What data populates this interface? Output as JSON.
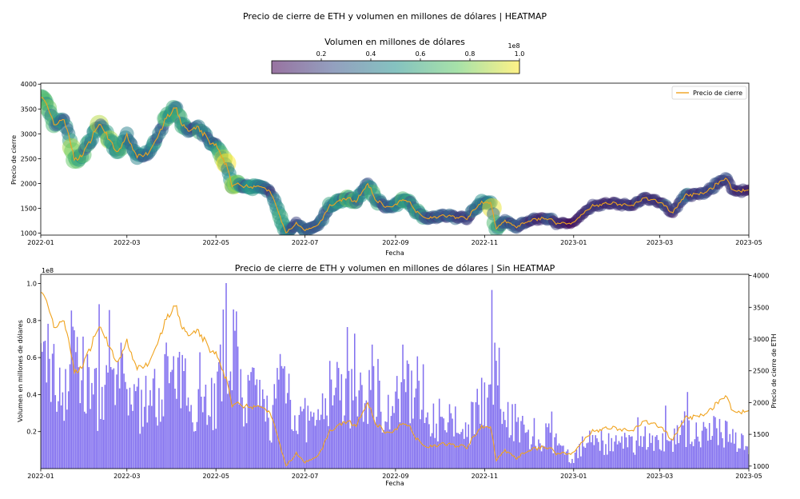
{
  "chart_data": [
    {
      "type": "scatter",
      "title": "Precio de cierre de ETH y volumen en millones de dólares | HEATMAP",
      "xlabel": "Fecha",
      "ylabel": "Precio de cierre",
      "x_ticks": [
        "2022-01",
        "2022-03",
        "2022-05",
        "2022-07",
        "2022-09",
        "2022-11",
        "2023-01",
        "2023-03",
        "2023-05"
      ],
      "y_ticks": [
        "1000",
        "1500",
        "2000",
        "2500",
        "3000",
        "3500",
        "4000"
      ],
      "xlim": [
        "2022-01-01",
        "2023-05-01"
      ],
      "ylim": [
        960,
        4020
      ],
      "legend": {
        "label": "Precio de cierre",
        "position": "upper right"
      },
      "colorbar": {
        "label": "Volumen en millones de dólares",
        "ticks": [
          "0.2",
          "0.4",
          "0.6",
          "0.8",
          "1.0"
        ],
        "offset": "1e8",
        "range": [
          0.0,
          1.0
        ],
        "colormap": "viridis"
      },
      "line_color": "#f0a31e",
      "keypoints": [
        {
          "date": "2022-01-01",
          "price": 3800,
          "vol": 0.55
        },
        {
          "date": "2022-01-06",
          "price": 3520,
          "vol": 0.75
        },
        {
          "date": "2022-01-10",
          "price": 3150,
          "vol": 0.55
        },
        {
          "date": "2022-01-15",
          "price": 3320,
          "vol": 0.5
        },
        {
          "date": "2022-01-20",
          "price": 3050,
          "vol": 0.55
        },
        {
          "date": "2022-01-24",
          "price": 2450,
          "vol": 0.85
        },
        {
          "date": "2022-01-30",
          "price": 2600,
          "vol": 0.55
        },
        {
          "date": "2022-02-07",
          "price": 3050,
          "vol": 0.45
        },
        {
          "date": "2022-02-10",
          "price": 3200,
          "vol": 0.45
        },
        {
          "date": "2022-02-15",
          "price": 3000,
          "vol": 0.4
        },
        {
          "date": "2022-02-22",
          "price": 2600,
          "vol": 0.55
        },
        {
          "date": "2022-03-01",
          "price": 2950,
          "vol": 0.5
        },
        {
          "date": "2022-03-08",
          "price": 2550,
          "vol": 0.4
        },
        {
          "date": "2022-03-15",
          "price": 2600,
          "vol": 0.4
        },
        {
          "date": "2022-03-22",
          "price": 2950,
          "vol": 0.45
        },
        {
          "date": "2022-03-29",
          "price": 3350,
          "vol": 0.6
        },
        {
          "date": "2022-04-03",
          "price": 3500,
          "vol": 0.5
        },
        {
          "date": "2022-04-11",
          "price": 3050,
          "vol": 0.5
        },
        {
          "date": "2022-04-20",
          "price": 3100,
          "vol": 0.4
        },
        {
          "date": "2022-04-26",
          "price": 2850,
          "vol": 0.45
        },
        {
          "date": "2022-05-01",
          "price": 2750,
          "vol": 0.4
        },
        {
          "date": "2022-05-09",
          "price": 2300,
          "vol": 0.85
        },
        {
          "date": "2022-05-12",
          "price": 1980,
          "vol": 0.8
        },
        {
          "date": "2022-05-20",
          "price": 1950,
          "vol": 0.45
        },
        {
          "date": "2022-05-31",
          "price": 1950,
          "vol": 0.4
        },
        {
          "date": "2022-06-08",
          "price": 1800,
          "vol": 0.3
        },
        {
          "date": "2022-06-13",
          "price": 1400,
          "vol": 0.55
        },
        {
          "date": "2022-06-18",
          "price": 1000,
          "vol": 0.6
        },
        {
          "date": "2022-06-25",
          "price": 1200,
          "vol": 0.3
        },
        {
          "date": "2022-07-01",
          "price": 1050,
          "vol": 0.3
        },
        {
          "date": "2022-07-10",
          "price": 1150,
          "vol": 0.25
        },
        {
          "date": "2022-07-18",
          "price": 1550,
          "vol": 0.5
        },
        {
          "date": "2022-07-28",
          "price": 1700,
          "vol": 0.45
        },
        {
          "date": "2022-08-05",
          "price": 1650,
          "vol": 0.4
        },
        {
          "date": "2022-08-13",
          "price": 1980,
          "vol": 0.45
        },
        {
          "date": "2022-08-19",
          "price": 1650,
          "vol": 0.5
        },
        {
          "date": "2022-08-28",
          "price": 1500,
          "vol": 0.35
        },
        {
          "date": "2022-09-08",
          "price": 1700,
          "vol": 0.45
        },
        {
          "date": "2022-09-15",
          "price": 1450,
          "vol": 0.55
        },
        {
          "date": "2022-09-22",
          "price": 1300,
          "vol": 0.4
        },
        {
          "date": "2022-10-05",
          "price": 1350,
          "vol": 0.25
        },
        {
          "date": "2022-10-20",
          "price": 1300,
          "vol": 0.2
        },
        {
          "date": "2022-10-29",
          "price": 1600,
          "vol": 0.5
        },
        {
          "date": "2022-11-05",
          "price": 1620,
          "vol": 0.45
        },
        {
          "date": "2022-11-09",
          "price": 1100,
          "vol": 0.6
        },
        {
          "date": "2022-11-15",
          "price": 1250,
          "vol": 0.35
        },
        {
          "date": "2022-11-22",
          "price": 1120,
          "vol": 0.3
        },
        {
          "date": "2022-12-05",
          "price": 1280,
          "vol": 0.15
        },
        {
          "date": "2022-12-15",
          "price": 1300,
          "vol": 0.2
        },
        {
          "date": "2022-12-20",
          "price": 1200,
          "vol": 0.15
        },
        {
          "date": "2022-12-31",
          "price": 1200,
          "vol": 0.05
        },
        {
          "date": "2023-01-14",
          "price": 1550,
          "vol": 0.2
        },
        {
          "date": "2023-01-25",
          "price": 1600,
          "vol": 0.15
        },
        {
          "date": "2023-02-10",
          "price": 1550,
          "vol": 0.15
        },
        {
          "date": "2023-02-18",
          "price": 1700,
          "vol": 0.2
        },
        {
          "date": "2023-03-01",
          "price": 1620,
          "vol": 0.15
        },
        {
          "date": "2023-03-10",
          "price": 1420,
          "vol": 0.2
        },
        {
          "date": "2023-03-18",
          "price": 1750,
          "vol": 0.25
        },
        {
          "date": "2023-04-01",
          "price": 1820,
          "vol": 0.2
        },
        {
          "date": "2023-04-15",
          "price": 2100,
          "vol": 0.25
        },
        {
          "date": "2023-04-21",
          "price": 1850,
          "vol": 0.2
        },
        {
          "date": "2023-04-30",
          "price": 1870,
          "vol": 0.15
        }
      ]
    },
    {
      "type": "bar",
      "title": "Precio de cierre de ETH y volumen en millones de dólares | Sin HEATMAP",
      "xlabel": "Fecha",
      "ylabel": "Volumen en millones de dólares",
      "y2label": "Precio de cierre de ETH",
      "x_ticks": [
        "2022-01",
        "2022-03",
        "2022-05",
        "2022-07",
        "2022-09",
        "2022-11",
        "2023-01",
        "2023-03",
        "2023-05"
      ],
      "y_ticks": [
        "0.2",
        "0.4",
        "0.6",
        "0.8",
        "1.0"
      ],
      "y_offset": "1e8",
      "y2_ticks": [
        "1000",
        "1500",
        "2000",
        "2500",
        "3000",
        "3500",
        "4000"
      ],
      "ylim": [
        0.0,
        1.05
      ],
      "y2lim": [
        960,
        4020
      ],
      "bar_color": "#7b68ee",
      "line_color": "#f0a31e"
    }
  ]
}
